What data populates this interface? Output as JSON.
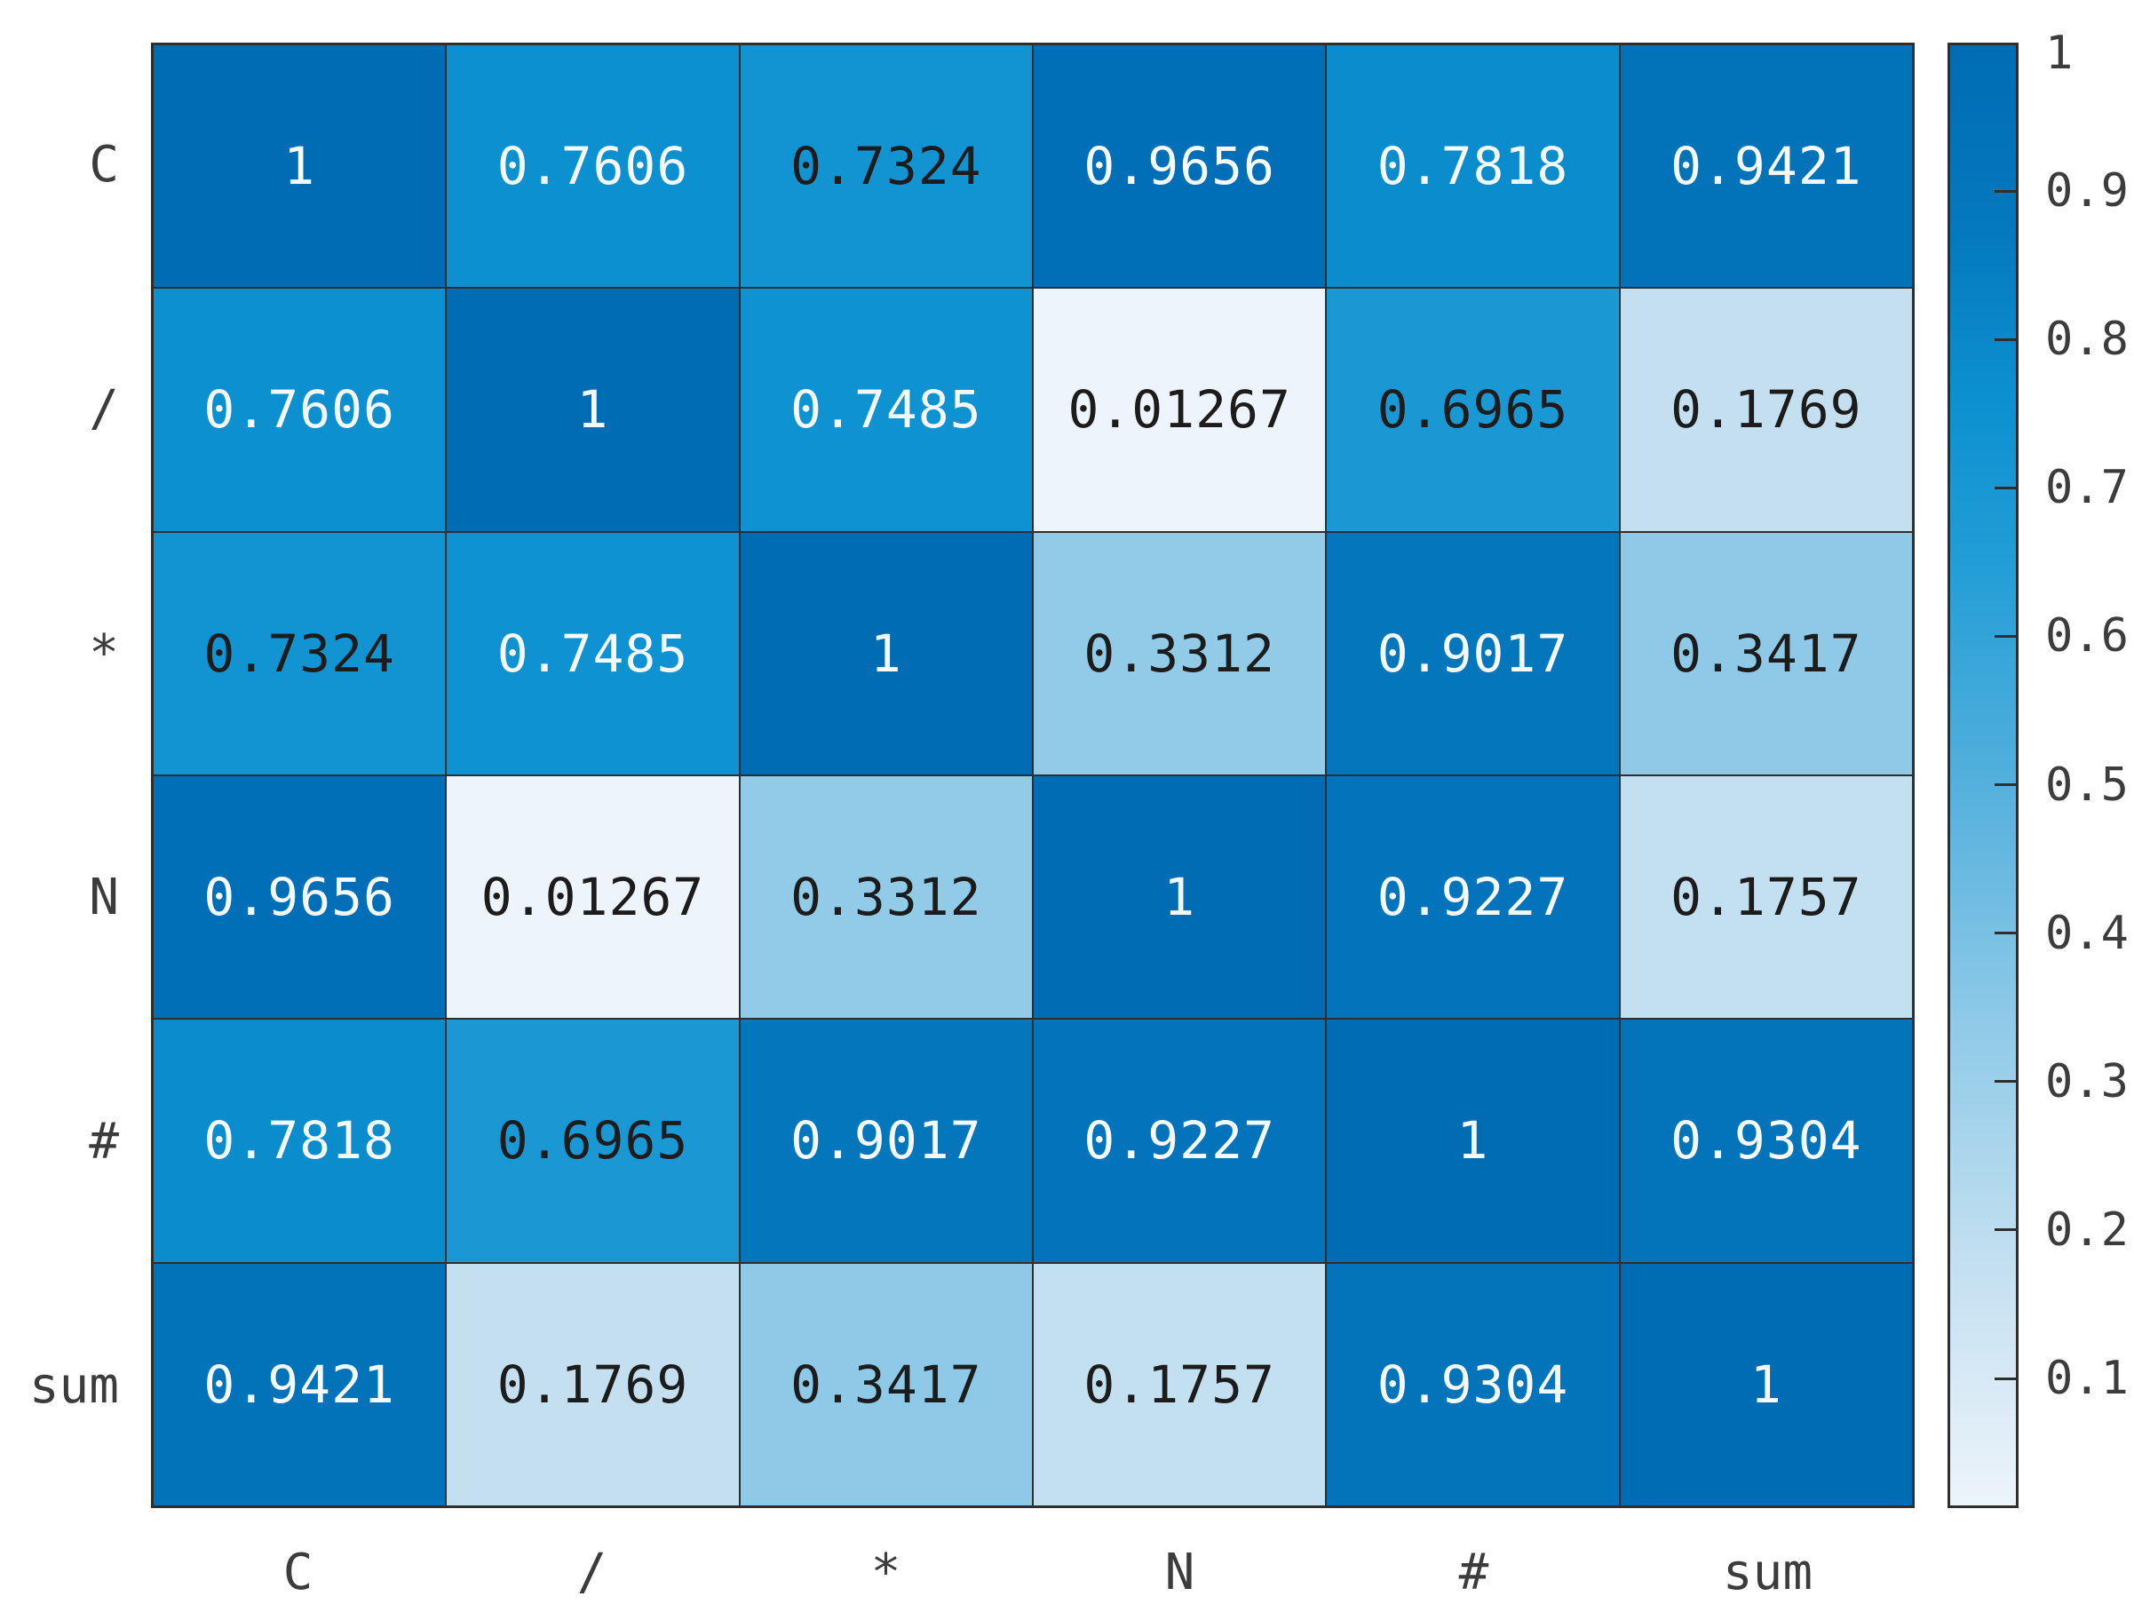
{
  "figure": {
    "background": "#ffffff",
    "grid_line_color": "#2e2e2e",
    "axis_label_color": "#3c3c3c",
    "cell_text_light": "#f4fafd",
    "cell_text_dark": "#1c1c1c"
  },
  "chart_data": {
    "type": "heatmap",
    "title": "",
    "xlabel": "",
    "ylabel": "",
    "x_categories": [
      "C",
      "/",
      "*",
      "N",
      "#",
      "sum"
    ],
    "y_categories": [
      "C",
      "/",
      "*",
      "N",
      "#",
      "sum"
    ],
    "matrix": [
      [
        1,
        0.7606,
        0.7324,
        0.9656,
        0.7818,
        0.9421
      ],
      [
        0.7606,
        1,
        0.7485,
        0.01267,
        0.6965,
        0.1769
      ],
      [
        0.7324,
        0.7485,
        1,
        0.3312,
        0.9017,
        0.3417
      ],
      [
        0.9656,
        0.01267,
        0.3312,
        1,
        0.9227,
        0.1757
      ],
      [
        0.7818,
        0.6965,
        0.9017,
        0.9227,
        1,
        0.9304
      ],
      [
        0.9421,
        0.1769,
        0.3417,
        0.1757,
        0.9304,
        1
      ]
    ],
    "matrix_labels": [
      [
        "1",
        "0.7606",
        "0.7324",
        "0.9656",
        "0.7818",
        "0.9421"
      ],
      [
        "0.7606",
        "1",
        "0.7485",
        "0.01267",
        "0.6965",
        "0.1769"
      ],
      [
        "0.7324",
        "0.7485",
        "1",
        "0.3312",
        "0.9017",
        "0.3417"
      ],
      [
        "0.9656",
        "0.01267",
        "0.3312",
        "1",
        "0.9227",
        "0.1757"
      ],
      [
        "0.7818",
        "0.6965",
        "0.9017",
        "0.9227",
        "1",
        "0.9304"
      ],
      [
        "0.9421",
        "0.1769",
        "0.3417",
        "0.1757",
        "0.9304",
        "1"
      ]
    ],
    "value_range": [
      0.01267,
      1
    ],
    "grid": true,
    "text_color_threshold": 0.74,
    "colormap_stops": [
      {
        "t": 0.0,
        "color": "#EDF4FB"
      },
      {
        "t": 0.17,
        "color": "#C2DFF0"
      },
      {
        "t": 0.33,
        "color": "#8FCAE8"
      },
      {
        "t": 0.5,
        "color": "#52AFDC"
      },
      {
        "t": 0.65,
        "color": "#219DD6"
      },
      {
        "t": 0.76,
        "color": "#0C90D0"
      },
      {
        "t": 0.87,
        "color": "#0579BF"
      },
      {
        "t": 1.0,
        "color": "#006CB4"
      }
    ],
    "colorbar": {
      "position": "right",
      "tick_labels": [
        "1",
        "0.9",
        "0.8",
        "0.7",
        "0.6",
        "0.5",
        "0.4",
        "0.3",
        "0.2",
        "0.1"
      ],
      "tick_values": [
        1,
        0.9,
        0.8,
        0.7,
        0.6,
        0.5,
        0.4,
        0.3,
        0.2,
        0.1
      ]
    }
  }
}
